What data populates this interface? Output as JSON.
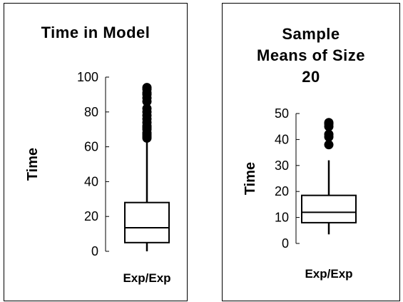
{
  "chart_data": [
    {
      "type": "box",
      "title": "Time in Model",
      "xlabel": "",
      "ylabel": "Time",
      "categories": [
        "Exp/Exp"
      ],
      "ylim": [
        0,
        100
      ],
      "yticks": [
        0,
        20,
        40,
        60,
        80,
        100
      ],
      "grid": false,
      "box": {
        "whisker_low": 0,
        "q1": 5,
        "median": 13.5,
        "q3": 28,
        "whisker_high": 64
      },
      "outliers": [
        65,
        66,
        67,
        68,
        70,
        71,
        72,
        74,
        76,
        78,
        80,
        82,
        86,
        88,
        90,
        91,
        93,
        94
      ]
    },
    {
      "type": "box",
      "title": "Sample Means of Size 20",
      "title_lines": [
        "Sample",
        "Means of Size",
        "20"
      ],
      "xlabel": "",
      "ylabel": "Time",
      "categories": [
        "Exp/Exp"
      ],
      "ylim": [
        0,
        50
      ],
      "yticks": [
        0,
        10,
        20,
        30,
        40,
        50
      ],
      "grid": false,
      "box": {
        "whisker_low": 3.5,
        "q1": 8,
        "median": 12,
        "q3": 18.5,
        "whisker_high": 32
      },
      "outliers": [
        38,
        41,
        42,
        45,
        46,
        46.5
      ]
    }
  ]
}
